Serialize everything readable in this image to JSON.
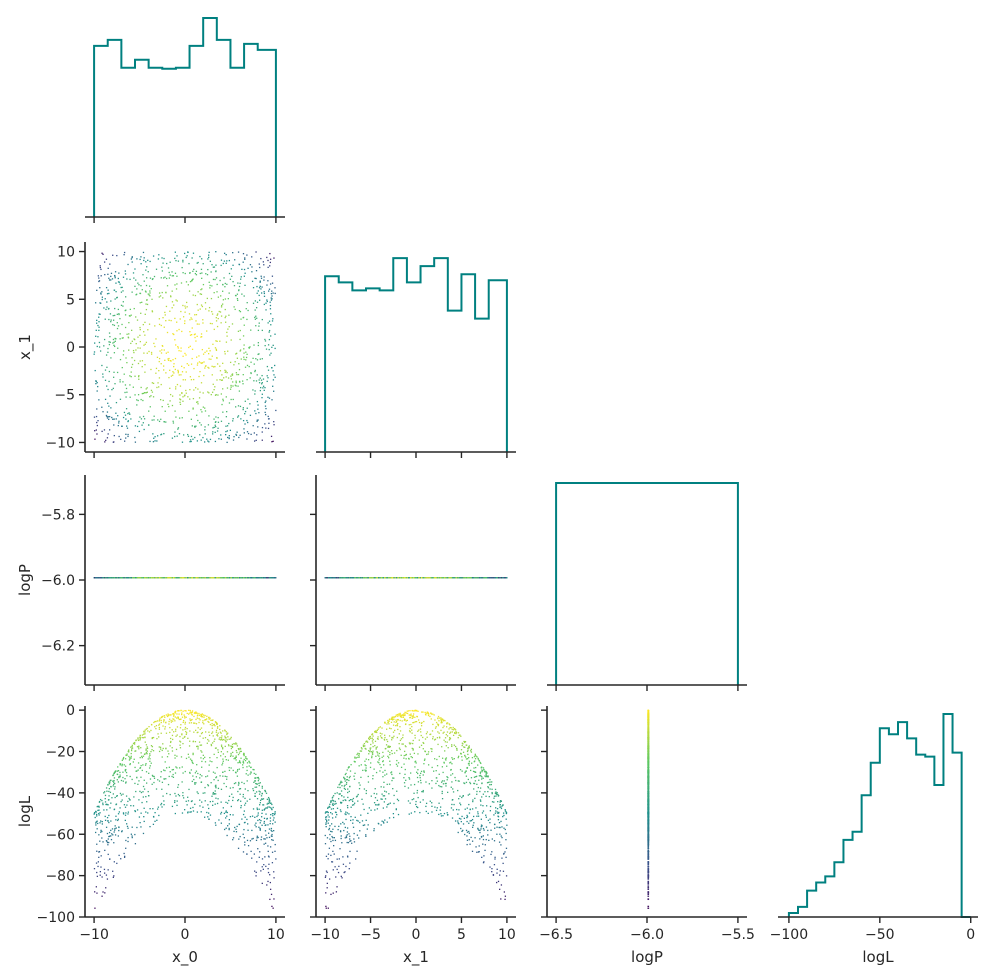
{
  "chart_data": {
    "type": "scatter",
    "layout": "corner-plot",
    "colors": {
      "histogram": "#008080",
      "colormap": [
        "#440154",
        "#3b528b",
        "#21918c",
        "#5ec962",
        "#fde725"
      ],
      "axis": "#262626"
    },
    "variables": [
      "x_0",
      "x_1",
      "logP",
      "logL"
    ],
    "limits": {
      "x_0": [
        -11,
        11
      ],
      "x_1": [
        -11,
        11
      ],
      "logP": [
        -6.32,
        -5.68
      ],
      "logP_hist_x": [
        -6.55,
        -5.45
      ],
      "logL": [
        -100,
        2
      ],
      "logL_hist_x": [
        -106,
        4
      ]
    },
    "ticks": {
      "x_0": [
        -10,
        0,
        10
      ],
      "x_1": [
        -10,
        -5,
        0,
        5,
        10
      ],
      "logP": [
        -6.2,
        -6.0,
        -5.8
      ],
      "logP_hist_x": [
        -6.5,
        -6.0,
        -5.5
      ],
      "logL": [
        -100,
        -80,
        -60,
        -40,
        -20,
        0
      ],
      "logL_hist_x": [
        -100,
        -50,
        0
      ]
    },
    "tick_labels": {
      "x_0": [
        "−10",
        "0",
        "10"
      ],
      "x_1": [
        "−10",
        "−5",
        "0",
        "5",
        "10"
      ],
      "logP": [
        "−6.2",
        "−6.0",
        "−5.8"
      ],
      "logP_hist_x": [
        "−6.5",
        "−6.0",
        "−5.5"
      ],
      "logL": [
        "−100",
        "−80",
        "−60",
        "−40",
        "−20",
        "0"
      ],
      "logL_hist_x": [
        "−100",
        "−50",
        "0"
      ]
    },
    "axis_labels": {
      "x_0": "x_0",
      "x_1": "x_1",
      "logP": "logP",
      "logL": "logL"
    },
    "histograms": {
      "x_0": {
        "edges": [
          -10,
          -8.5,
          -7,
          -5.5,
          -4,
          -2.5,
          -1,
          0.5,
          2,
          3.5,
          5,
          6.5,
          8,
          10
        ],
        "heights": [
          0.86,
          0.89,
          0.75,
          0.79,
          0.75,
          0.745,
          0.75,
          0.86,
          1.0,
          0.89,
          0.75,
          0.87,
          0.84
        ]
      },
      "x_1": {
        "edges": [
          -10,
          -8.5,
          -7,
          -5.5,
          -4,
          -2.5,
          -1,
          0.5,
          2,
          3.5,
          5,
          6.5,
          8,
          10
        ],
        "heights": [
          0.87,
          0.84,
          0.8,
          0.81,
          0.8,
          0.96,
          0.84,
          0.92,
          0.96,
          0.7,
          0.88,
          0.66,
          0.85
        ]
      },
      "logP": {
        "edges": [
          -6.5,
          -5.5
        ],
        "heights": [
          1.0
        ]
      },
      "logL": {
        "edges": [
          -100,
          -95,
          -90,
          -85,
          -80,
          -75,
          -70,
          -65,
          -60,
          -55,
          -50,
          -45,
          -40,
          -35,
          -30,
          -25,
          -20,
          -15,
          -10,
          -5,
          0
        ],
        "heights": [
          0.02,
          0.05,
          0.13,
          0.17,
          0.2,
          0.27,
          0.38,
          0.42,
          0.6,
          0.76,
          0.93,
          0.9,
          0.96,
          0.88,
          0.8,
          0.79,
          0.65,
          1.0,
          0.81,
          0.0
        ]
      }
    },
    "scatter": {
      "n_points": 1300,
      "x_range": [
        -10,
        10
      ],
      "logP_value": -5.993,
      "logL_formula": "-(x_0^2 + x_1^2)/2",
      "color_by": "logL"
    }
  }
}
